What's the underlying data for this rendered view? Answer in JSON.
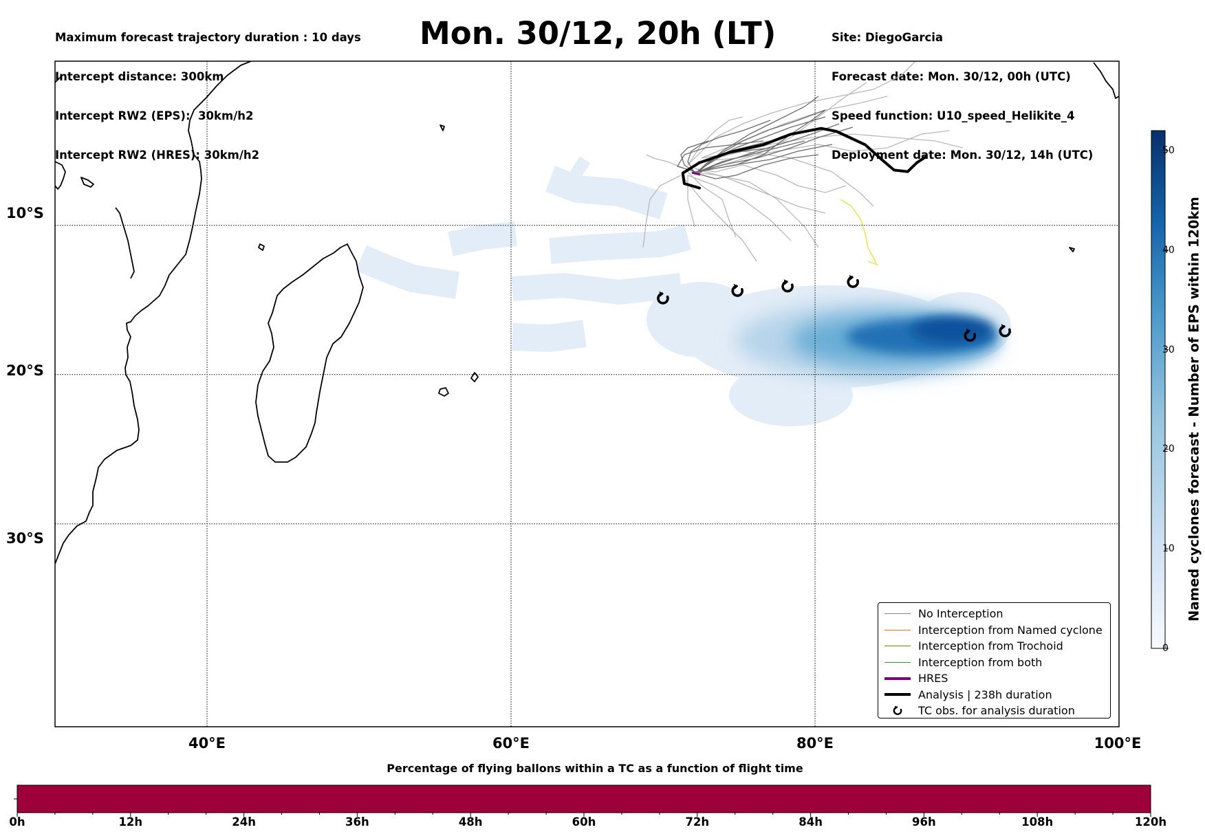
{
  "header_left": [
    "Maximum forecast trajectory duration : 10 days",
    "Intercept distance: 300km",
    "Intercept RW2 (EPS):  30km/h2",
    "Intercept RW2 (HRES): 30km/h2"
  ],
  "header_right": [
    "Site: DiegoGarcia",
    "Forecast date: Mon. 30/12, 00h (UTC)",
    "Speed function: U10_speed_Helikite_4",
    "Deployment date: Mon. 30/12, 14h (UTC)"
  ],
  "title": "Mon. 30/12, 20h (LT)",
  "map": {
    "lat_labels": [
      "10°S",
      "20°S",
      "30°S"
    ],
    "lon_labels": [
      "40°E",
      "60°E",
      "80°E",
      "100°E"
    ],
    "lon_range": [
      30,
      100
    ],
    "lat_range": [
      -43.6,
      1.0
    ],
    "lat_lines": [
      -10,
      -20,
      -30
    ],
    "lon_lines": [
      40,
      60,
      80
    ],
    "grid": true
  },
  "legend": {
    "items": [
      {
        "label": "No Interception",
        "color": "#808080",
        "kind": "line-thin"
      },
      {
        "label": "Interception from Named cyclone",
        "color": "#ff6a30",
        "kind": "line-thin"
      },
      {
        "label": "Interception from Trochoid",
        "color": "#808000",
        "kind": "line-thin"
      },
      {
        "label": "Interception from both",
        "color": "#2ca02c",
        "kind": "line-thin"
      },
      {
        "label": "HRES",
        "color": "#800080",
        "kind": "line-thick"
      },
      {
        "label": "Analysis | 238h duration",
        "color": "#000000",
        "kind": "line-thick"
      },
      {
        "label": "TC obs. for analysis duration",
        "color": "#000000",
        "kind": "tc-symbol"
      }
    ]
  },
  "colorbar": {
    "title": "Named cyclones forecast - Number of EPS within 120km",
    "ticks": [
      0,
      10,
      20,
      30,
      40,
      50
    ],
    "vmin": 0,
    "vmax": 52,
    "color_low": "#f7fbff",
    "color_high": "#08306b"
  },
  "bottom_bar": {
    "title": "Percentage of flying ballons within a TC as a function of flight time",
    "tick_labels": [
      "0h",
      "12h",
      "24h",
      "36h",
      "48h",
      "60h",
      "72h",
      "84h",
      "96h",
      "108h",
      "120h"
    ],
    "fill_color": "#9e003a"
  },
  "tc_observations": [
    {
      "lon": 70.0,
      "lat": -14.9
    },
    {
      "lon": 74.9,
      "lat": -14.4
    },
    {
      "lon": 78.2,
      "lat": -14.1
    },
    {
      "lon": 82.5,
      "lat": -13.8
    },
    {
      "lon": 90.2,
      "lat": -17.4
    },
    {
      "lon": 92.5,
      "lat": -17.1
    }
  ],
  "analysis_track": {
    "color": "#000000",
    "points": [
      [
        72.4,
        -7.5
      ],
      [
        71.4,
        -7.2
      ],
      [
        71.3,
        -6.5
      ],
      [
        72.4,
        -5.8
      ],
      [
        74.4,
        -5.1
      ],
      [
        76.6,
        -4.6
      ],
      [
        78.4,
        -3.9
      ],
      [
        80.4,
        -3.5
      ],
      [
        81.4,
        -3.7
      ],
      [
        83.3,
        -4.6
      ],
      [
        84.4,
        -5.6
      ],
      [
        85.2,
        -6.3
      ],
      [
        86.1,
        -6.4
      ],
      [
        86.7,
        -5.8
      ],
      [
        87.3,
        -5.4
      ]
    ]
  },
  "ensemble_colors": {
    "dark": "#6b6b6b",
    "light": "#b8b8b8",
    "yellow": "#e8e86a",
    "hres": "#800080"
  }
}
